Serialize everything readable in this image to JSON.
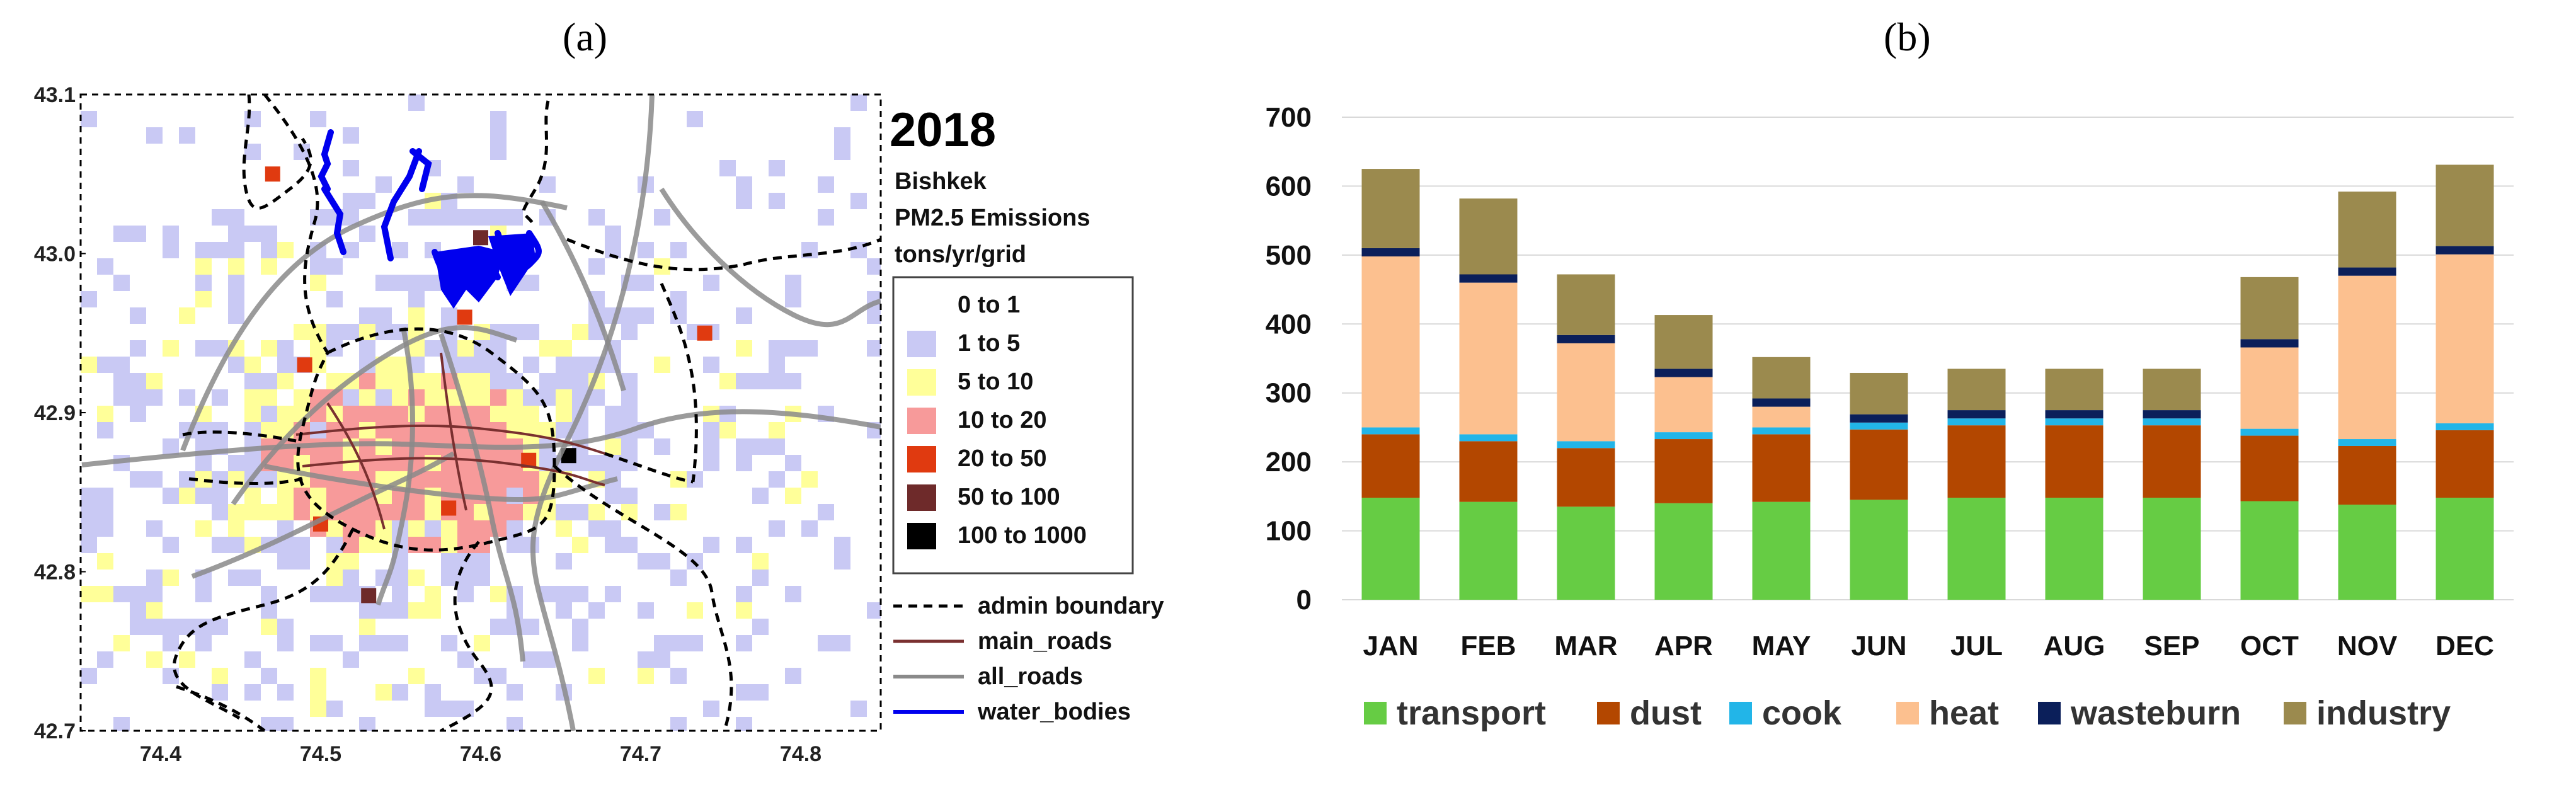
{
  "panels": {
    "a": "(a)",
    "b": "(b)"
  },
  "colors": {
    "transport": "#66cc44",
    "dust": "#b34700",
    "cook": "#22b5e8",
    "heat": "#fcc08f",
    "wasteburn": "#0b1f5a",
    "industry": "#9b8a4e",
    "bin1": "#c9c9f4",
    "bin2": "#ffff99",
    "bin3": "#f79a9a",
    "bin4": "#e03a10",
    "bin5": "#6e2a2a",
    "bin6": "#000000",
    "water": "#0000ee",
    "main_road": "#7a3030",
    "all_road": "#8a8a8a"
  },
  "chart_data": [
    {
      "type": "heatmap",
      "title": "2018",
      "subtitle_lines": [
        "Bishkek",
        "PM2.5 Emissions",
        "tons/yr/grid"
      ],
      "xlim": [
        74.35,
        74.85
      ],
      "ylim": [
        42.7,
        43.1
      ],
      "x_ticks": [
        "74.4",
        "74.5",
        "74.6",
        "74.7",
        "74.8"
      ],
      "y_ticks": [
        "43.1",
        "43.0",
        "42.9",
        "42.8",
        "42.7"
      ],
      "bins": [
        {
          "label": "0  to  1",
          "color_key": null
        },
        {
          "label": "1  to  5",
          "color_key": "bin1"
        },
        {
          "label": "5  to  10",
          "color_key": "bin2"
        },
        {
          "label": "10  to  20",
          "color_key": "bin3"
        },
        {
          "label": "20  to  50",
          "color_key": "bin4"
        },
        {
          "label": "50  to  100",
          "color_key": "bin5"
        },
        {
          "label": "100  to  1000",
          "color_key": "bin6"
        }
      ],
      "line_legend": [
        "admin boundary",
        "main_roads",
        "all_roads",
        "water_bodies"
      ]
    },
    {
      "type": "bar",
      "stacked": true,
      "categories": [
        "JAN",
        "FEB",
        "MAR",
        "APR",
        "MAY",
        "JUN",
        "JUL",
        "AUG",
        "SEP",
        "OCT",
        "NOV",
        "DEC"
      ],
      "ylim": [
        0,
        700
      ],
      "y_ticks": [
        "0",
        "100",
        "200",
        "300",
        "400",
        "500",
        "600",
        "700"
      ],
      "grid": true,
      "legend_position": "bottom",
      "series": [
        {
          "name": "transport",
          "values": [
            148,
            142,
            135,
            140,
            142,
            145,
            148,
            148,
            148,
            143,
            138,
            148
          ]
        },
        {
          "name": "dust",
          "values": [
            92,
            88,
            85,
            93,
            98,
            102,
            105,
            105,
            105,
            95,
            85,
            98
          ]
        },
        {
          "name": "cook",
          "values": [
            10,
            10,
            10,
            10,
            10,
            10,
            10,
            10,
            10,
            10,
            10,
            10
          ]
        },
        {
          "name": "heat",
          "values": [
            248,
            220,
            142,
            80,
            30,
            0,
            0,
            0,
            0,
            118,
            237,
            245
          ]
        },
        {
          "name": "wasteburn",
          "values": [
            12,
            12,
            12,
            12,
            12,
            12,
            12,
            12,
            12,
            12,
            12,
            12
          ]
        },
        {
          "name": "industry",
          "values": [
            115,
            110,
            88,
            78,
            60,
            60,
            60,
            60,
            60,
            90,
            110,
            118
          ]
        }
      ]
    }
  ]
}
